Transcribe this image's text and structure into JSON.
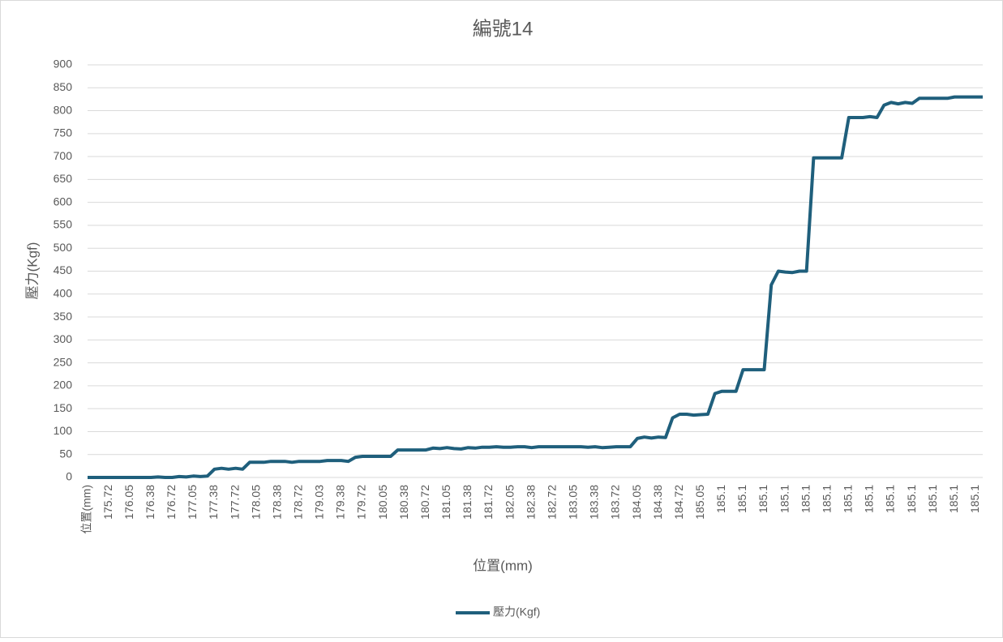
{
  "chart_data": {
    "type": "line",
    "title": "編號14",
    "x_label": "位置(mm)",
    "y_label": "壓力(Kgf)",
    "categories": [
      "位置(mm)",
      null,
      null,
      "175.72",
      null,
      null,
      "176.05",
      null,
      null,
      "176.38",
      null,
      null,
      "176.72",
      null,
      null,
      "177.05",
      null,
      null,
      "177.38",
      null,
      null,
      "177.72",
      null,
      null,
      "178.05",
      null,
      null,
      "178.38",
      null,
      null,
      "178.72",
      null,
      null,
      "179.03",
      null,
      null,
      "179.38",
      null,
      null,
      "179.72",
      null,
      null,
      "180.05",
      null,
      null,
      "180.38",
      null,
      null,
      "180.72",
      null,
      null,
      "181.05",
      null,
      null,
      "181.38",
      null,
      null,
      "181.72",
      null,
      null,
      "182.05",
      null,
      null,
      "182.38",
      null,
      null,
      "182.72",
      null,
      null,
      "183.05",
      null,
      null,
      "183.38",
      null,
      null,
      "183.72",
      null,
      null,
      "184.05",
      null,
      null,
      "184.38",
      null,
      null,
      "184.72",
      null,
      null,
      "185.05",
      null,
      null,
      "185.1",
      null,
      null,
      "185.1",
      null,
      null,
      "185.1",
      null,
      null,
      "185.1",
      null,
      null,
      "185.1",
      null,
      null,
      "185.1",
      null,
      null,
      "185.1",
      null,
      null,
      "185.1",
      null,
      null,
      "185.1",
      null,
      null,
      "185.1",
      null,
      null,
      "185.1",
      null,
      null,
      "185.1",
      null,
      null,
      "185.1",
      null
    ],
    "series": [
      {
        "name": "壓力(Kgf)",
        "color": "#1f5f7c",
        "values": [
          0,
          0,
          0,
          0,
          0,
          0,
          0,
          0,
          0,
          0,
          1,
          0,
          0,
          2,
          1,
          3,
          2,
          3,
          18,
          20,
          18,
          20,
          18,
          33,
          33,
          33,
          35,
          35,
          35,
          33,
          35,
          35,
          35,
          35,
          37,
          37,
          37,
          35,
          44,
          46,
          46,
          46,
          46,
          46,
          60,
          60,
          60,
          60,
          60,
          64,
          63,
          65,
          63,
          62,
          65,
          64,
          66,
          66,
          67,
          66,
          66,
          67,
          67,
          65,
          67,
          67,
          67,
          67,
          67,
          67,
          67,
          66,
          67,
          65,
          66,
          67,
          67,
          67,
          85,
          88,
          86,
          88,
          87,
          130,
          138,
          138,
          136,
          137,
          138,
          183,
          188,
          188,
          188,
          235,
          235,
          235,
          235,
          420,
          450,
          448,
          447,
          450,
          450,
          697,
          697,
          697,
          697,
          697,
          785,
          785,
          785,
          787,
          785,
          812,
          818,
          815,
          818,
          816,
          827,
          827,
          827,
          827,
          827,
          830,
          830,
          830,
          830,
          830
        ]
      }
    ],
    "ylim": [
      0,
      900
    ],
    "yticks": [
      0,
      50,
      100,
      150,
      200,
      250,
      300,
      350,
      400,
      450,
      500,
      550,
      600,
      650,
      700,
      750,
      800,
      850,
      900
    ],
    "grid": true,
    "legend": "bottom"
  }
}
